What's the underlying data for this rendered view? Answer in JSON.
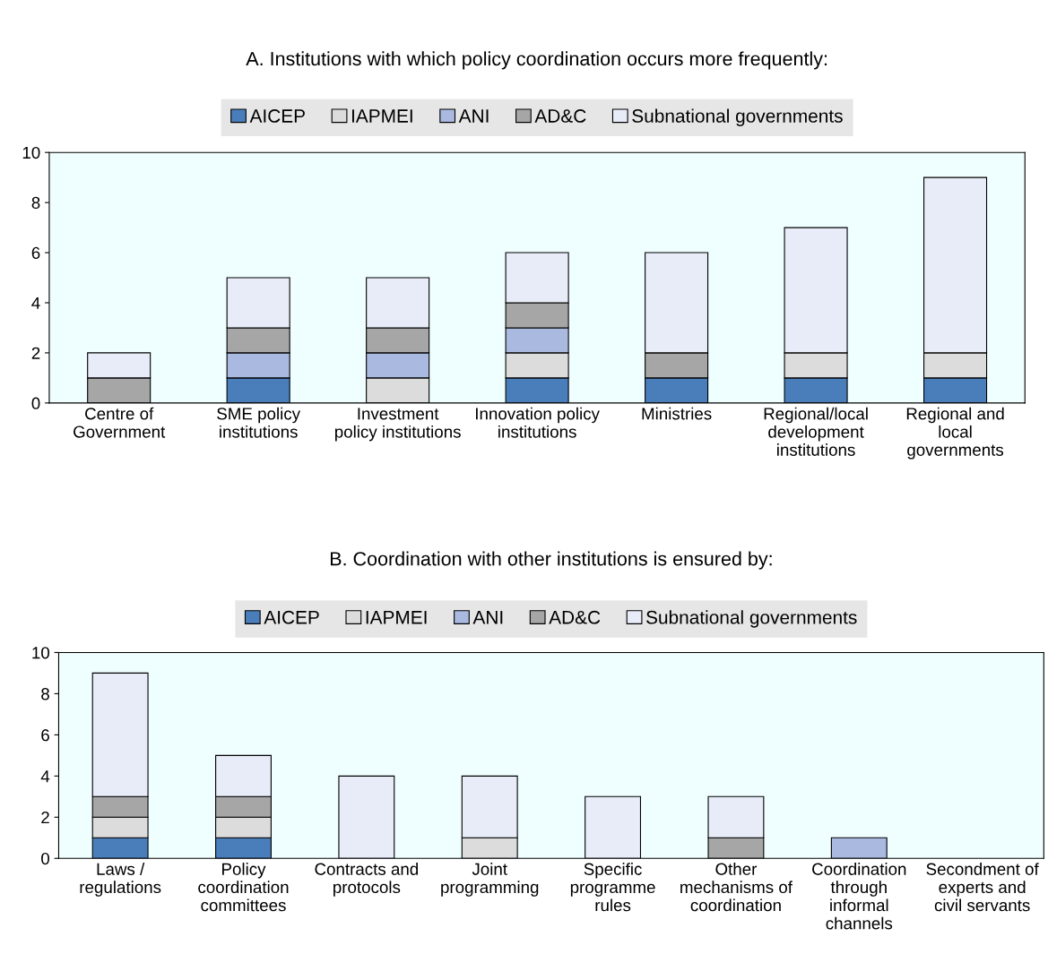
{
  "chart_data": [
    {
      "type": "bar",
      "stacked": true,
      "title": "A. Institutions with which policy coordination occurs more frequently:",
      "categories": [
        "Centre of\nGovernment",
        "SME policy\ninstitutions",
        "Investment\npolicy institutions",
        "Innovation policy\ninstitutions",
        "Ministries",
        "Regional/local\ndevelopment\ninstitutions",
        "Regional and\nlocal\ngovernments"
      ],
      "series": [
        {
          "name": "AICEP",
          "color": "#4a7ebb",
          "values": [
            0,
            1,
            0,
            1,
            1,
            1,
            1
          ]
        },
        {
          "name": "IAPMEI",
          "color": "#dcdcdc",
          "values": [
            0,
            0,
            1,
            1,
            0,
            1,
            1
          ]
        },
        {
          "name": "ANI",
          "color": "#a9b9e0",
          "values": [
            0,
            1,
            1,
            1,
            0,
            0,
            0
          ]
        },
        {
          "name": "AD&C",
          "color": "#a6a6a6",
          "values": [
            1,
            1,
            1,
            1,
            1,
            0,
            0
          ]
        },
        {
          "name": "Subnational governments",
          "color": "#e8ecf8",
          "values": [
            1,
            2,
            2,
            2,
            4,
            5,
            7
          ]
        }
      ],
      "ylim": [
        0,
        10
      ],
      "yticks": [
        0,
        2,
        4,
        6,
        8,
        10
      ],
      "grid": false,
      "legend": "top"
    },
    {
      "type": "bar",
      "stacked": true,
      "title": "B. Coordination with other institutions is ensured by:",
      "categories": [
        "Laws /\nregulations",
        "Policy\ncoordination\ncommittees",
        "Contracts and\nprotocols",
        "Joint\nprogramming",
        "Specific\nprogramme\nrules",
        "Other\nmechanisms of\ncoordination",
        "Coordination\nthrough\ninformal\nchannels",
        "Secondment of\nexperts and\ncivil servants"
      ],
      "series": [
        {
          "name": "AICEP",
          "color": "#4a7ebb",
          "values": [
            1,
            1,
            0,
            0,
            0,
            0,
            0,
            0
          ]
        },
        {
          "name": "IAPMEI",
          "color": "#dcdcdc",
          "values": [
            1,
            1,
            0,
            1,
            0,
            0,
            0,
            0
          ]
        },
        {
          "name": "ANI",
          "color": "#a9b9e0",
          "values": [
            0,
            0,
            0,
            0,
            0,
            0,
            1,
            0
          ]
        },
        {
          "name": "AD&C",
          "color": "#a6a6a6",
          "values": [
            1,
            1,
            0,
            0,
            0,
            1,
            0,
            0
          ]
        },
        {
          "name": "Subnational governments",
          "color": "#e8ecf8",
          "values": [
            6,
            2,
            4,
            3,
            3,
            2,
            0,
            0
          ]
        }
      ],
      "ylim": [
        0,
        10
      ],
      "yticks": [
        0,
        2,
        4,
        6,
        8,
        10
      ],
      "grid": false,
      "legend": "top"
    }
  ]
}
